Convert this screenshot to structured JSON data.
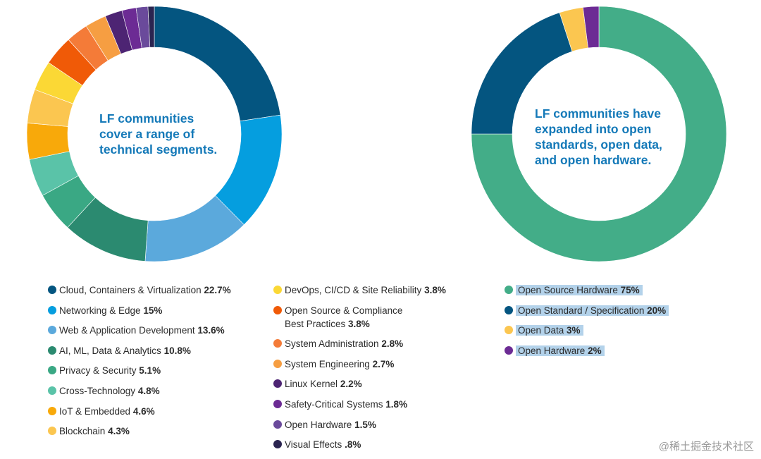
{
  "chart_data": [
    {
      "type": "pie",
      "donut": true,
      "title": "LF communities cover a range of technical segments.",
      "center_lines": [
        "LF communities",
        "cover a range of",
        "technical segments."
      ],
      "categories": [
        "Cloud, Containers & Virtualization",
        "Networking & Edge",
        "Web & Application Development",
        "AI, ML, Data & Analytics",
        "Privacy & Security",
        "Cross-Technology",
        "IoT & Embedded",
        "Blockchain",
        "DevOps, CI/CD & Site Reliability",
        "Open Source & Compliance Best Practices",
        "System Administration",
        "System Engineering",
        "Linux Kernel",
        "Safety-Critical Systems",
        "Open Hardware",
        "Visual Effects"
      ],
      "values": [
        22.7,
        15,
        13.6,
        10.8,
        5.1,
        4.8,
        4.6,
        4.3,
        3.8,
        3.8,
        2.8,
        2.7,
        2.2,
        1.8,
        1.5,
        0.8
      ],
      "labels": [
        "22.7%",
        "15%",
        "13.6%",
        "10.8%",
        "5.1%",
        "4.8%",
        "4.6%",
        "4.3%",
        "3.8%",
        "3.8%",
        "2.8%",
        "2.7%",
        "2.2%",
        "1.8%",
        "1.5%",
        ".8%"
      ],
      "colors": [
        "#045580",
        "#059edf",
        "#5ba9dc",
        "#2b8a70",
        "#3aa884",
        "#5ac3a8",
        "#f8a90a",
        "#fbc650",
        "#fbd835",
        "#f05a07",
        "#f47b38",
        "#f69e42",
        "#4d2473",
        "#6c2b94",
        "#6a4a9b",
        "#2a2450"
      ]
    },
    {
      "type": "pie",
      "donut": true,
      "title": "LF communities have expanded into open standards, open data, and open hardware.",
      "center_lines": [
        "LF communities have",
        "expanded into open",
        "standards, open data,",
        "and open hardware."
      ],
      "categories": [
        "Open Source Hardware",
        "Open Standard / Specification",
        "Open Data",
        "Open Hardware"
      ],
      "values": [
        75,
        20,
        3,
        2
      ],
      "labels": [
        "75%",
        "20%",
        "3%",
        "2%"
      ],
      "colors": [
        "#43ad88",
        "#045580",
        "#fbc650",
        "#6c2b94"
      ]
    }
  ],
  "watermark": "@稀土掘金技术社区"
}
